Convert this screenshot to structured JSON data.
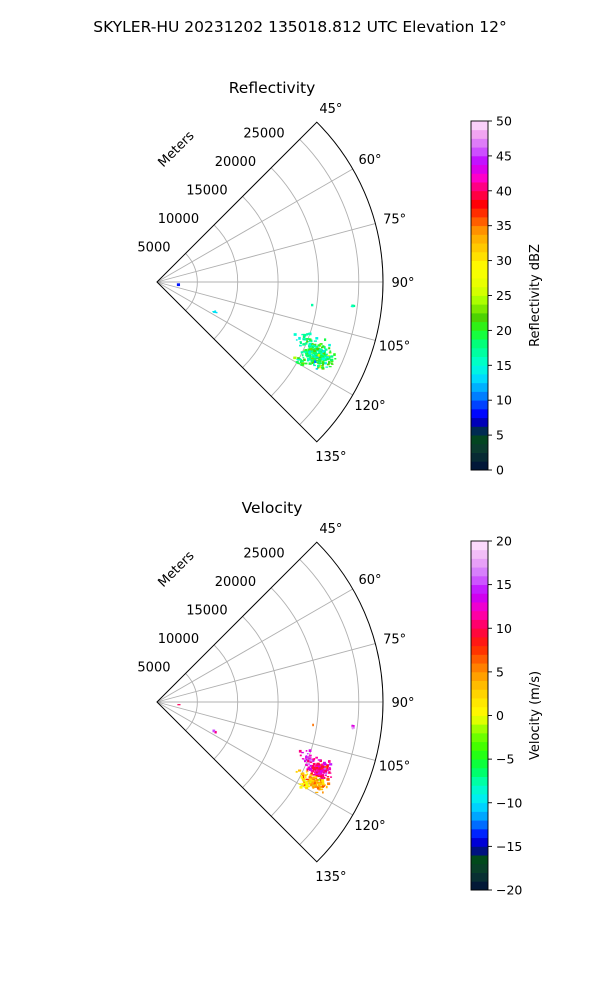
{
  "figure": {
    "title": "SKYLER-HU  20231202  135018.812 UTC Elevation 12°"
  },
  "chart_data": [
    {
      "type": "polar_sector_scatter",
      "title": "Reflectivity",
      "radial_label": "Meters",
      "r_ticks": [
        5000,
        10000,
        15000,
        20000,
        25000
      ],
      "r_tick_labels": [
        "5000",
        "10000",
        "15000",
        "20000",
        "25000"
      ],
      "r_max": 28000,
      "theta_range_deg": [
        45,
        135
      ],
      "theta_ticks_deg": [
        45,
        60,
        75,
        90,
        105,
        120,
        135
      ],
      "theta_tick_labels": [
        "45°",
        "60°",
        "75°",
        "90°",
        "105°",
        "120°",
        "135°"
      ],
      "grid": true,
      "colorbar": {
        "label": "Reflectivity dBZ",
        "min": 0,
        "max": 50,
        "ticks": [
          0,
          5,
          10,
          15,
          20,
          25,
          30,
          35,
          40,
          45,
          50
        ],
        "tick_labels": [
          "0",
          "5",
          "10",
          "15",
          "20",
          "25",
          "30",
          "35",
          "40",
          "45",
          "50"
        ]
      },
      "clusters": [
        {
          "az_deg": 114.5,
          "r_m": 21800,
          "az_spread": 3.2,
          "r_spread": 1500,
          "count": 240,
          "value_mean": 19,
          "value_spread": 3
        },
        {
          "az_deg": 111.5,
          "r_m": 20000,
          "az_spread": 2.0,
          "r_spread": 700,
          "count": 30,
          "value_mean": 17,
          "value_spread": 2
        },
        {
          "az_deg": 119.0,
          "r_m": 20500,
          "az_spread": 1.0,
          "r_spread": 600,
          "count": 14,
          "value_mean": 18,
          "value_spread": 2
        },
        {
          "az_deg": 97.0,
          "r_m": 24500,
          "az_spread": 0.4,
          "r_spread": 200,
          "count": 5,
          "value_mean": 17,
          "value_spread": 2
        },
        {
          "az_deg": 98.5,
          "r_m": 19500,
          "az_spread": 0.2,
          "r_spread": 100,
          "count": 1,
          "value_mean": 16,
          "value_spread": 1
        },
        {
          "az_deg": 117.0,
          "r_m": 8000,
          "az_spread": 0.6,
          "r_spread": 300,
          "count": 4,
          "value_mean": 14,
          "value_spread": 2
        },
        {
          "az_deg": 97.0,
          "r_m": 2700,
          "az_spread": 0.3,
          "r_spread": 100,
          "count": 1,
          "value_mean": 8,
          "value_spread": 1
        }
      ]
    },
    {
      "type": "polar_sector_scatter",
      "title": "Velocity",
      "radial_label": "Meters",
      "r_ticks": [
        5000,
        10000,
        15000,
        20000,
        25000
      ],
      "r_tick_labels": [
        "5000",
        "10000",
        "15000",
        "20000",
        "25000"
      ],
      "r_max": 28000,
      "theta_range_deg": [
        45,
        135
      ],
      "theta_ticks_deg": [
        45,
        60,
        75,
        90,
        105,
        120,
        135
      ],
      "theta_tick_labels": [
        "45°",
        "60°",
        "75°",
        "90°",
        "105°",
        "120°",
        "135°"
      ],
      "grid": true,
      "colorbar": {
        "label": "Velocity (m/s)",
        "min": -20,
        "max": 20,
        "ticks": [
          -20,
          -15,
          -10,
          -5,
          0,
          5,
          10,
          15,
          20
        ],
        "tick_labels": [
          "−20",
          "−15",
          "−10",
          "−5",
          "0",
          "5",
          "10",
          "15",
          "20"
        ]
      },
      "clusters": [
        {
          "az_deg": 112.5,
          "r_m": 21800,
          "az_spread": 2.2,
          "r_spread": 1200,
          "count": 160,
          "value_mean": 11,
          "value_spread": 2
        },
        {
          "az_deg": 117.0,
          "r_m": 21800,
          "az_spread": 1.6,
          "r_spread": 1300,
          "count": 110,
          "value_mean": 4,
          "value_spread": 2
        },
        {
          "az_deg": 110.5,
          "r_m": 20000,
          "az_spread": 2.0,
          "r_spread": 700,
          "count": 30,
          "value_mean": 13,
          "value_spread": 2
        },
        {
          "az_deg": 119.0,
          "r_m": 21000,
          "az_spread": 1.0,
          "r_spread": 600,
          "count": 12,
          "value_mean": 1,
          "value_spread": 1
        },
        {
          "az_deg": 97.0,
          "r_m": 24500,
          "az_spread": 0.4,
          "r_spread": 200,
          "count": 5,
          "value_mean": 15,
          "value_spread": 2
        },
        {
          "az_deg": 98.5,
          "r_m": 19500,
          "az_spread": 0.2,
          "r_spread": 100,
          "count": 1,
          "value_mean": 6,
          "value_spread": 1
        },
        {
          "az_deg": 117.0,
          "r_m": 8000,
          "az_spread": 0.6,
          "r_spread": 300,
          "count": 4,
          "value_mean": 13,
          "value_spread": 2
        },
        {
          "az_deg": 97.0,
          "r_m": 2700,
          "az_spread": 0.3,
          "r_spread": 100,
          "count": 1,
          "value_mean": 11,
          "value_spread": 1
        }
      ]
    }
  ]
}
